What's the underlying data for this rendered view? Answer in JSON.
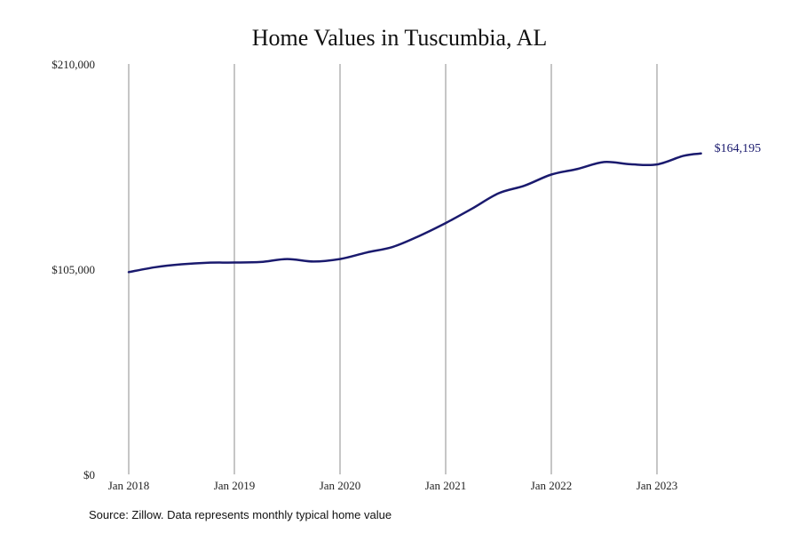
{
  "chart_data": {
    "type": "line",
    "title": "Home Values in Tuscumbia, AL",
    "xlabel": "",
    "ylabel": "",
    "y_ticks": [
      "$210,000",
      "$105,000",
      "$0"
    ],
    "y_tick_values": [
      210000,
      105000,
      0
    ],
    "ylim": [
      0,
      210000
    ],
    "x_ticks": [
      "Jan 2018",
      "Jan 2019",
      "Jan 2020",
      "Jan 2021",
      "Jan 2022",
      "Jan 2023"
    ],
    "x_range": [
      "2018-01",
      "2023-06"
    ],
    "grid": "vertical lines at each January",
    "line_color": "#1a1a6e",
    "end_label": "$164,195",
    "series": [
      {
        "x": [
          "2018-01",
          "2018-04",
          "2018-07",
          "2018-10",
          "2019-01",
          "2019-04",
          "2019-07",
          "2019-10",
          "2020-01",
          "2020-04",
          "2020-07",
          "2020-10",
          "2021-01",
          "2021-04",
          "2021-07",
          "2021-10",
          "2022-01",
          "2022-04",
          "2022-07",
          "2022-10",
          "2023-01",
          "2023-04",
          "2023-06"
        ],
        "values": [
          103500,
          106000,
          107500,
          108300,
          108400,
          108700,
          110200,
          108900,
          110200,
          113500,
          116400,
          122000,
          128600,
          136000,
          143800,
          147800,
          153400,
          156300,
          159800,
          158700,
          158600,
          163000,
          164195
        ]
      }
    ]
  },
  "source": "Source: Zillow. Data represents monthly typical home value"
}
